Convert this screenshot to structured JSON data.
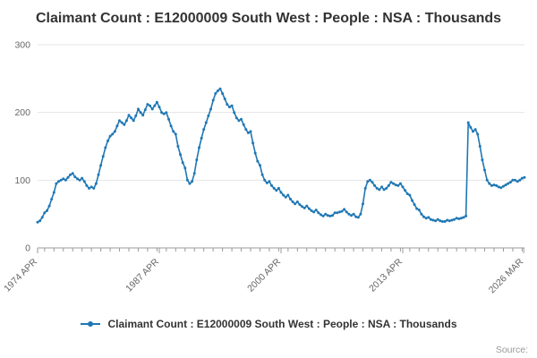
{
  "title": "Claimant Count : E12000009 South West : People : NSA : Thousands",
  "source_label": "Source:",
  "legend": {
    "label": "Claimant Count : E12000009 South West : People : NSA : Thousands"
  },
  "colors": {
    "line": "#1f77b4",
    "grid": "#e4e4e4",
    "axis": "#999999",
    "title_text": "#333333",
    "tick_text": "#666666",
    "source_text": "#999999"
  },
  "chart_data": {
    "type": "line",
    "title": "Claimant Count : E12000009 South West : People : NSA : Thousands",
    "xlabel": "",
    "ylabel": "",
    "legend_position": "bottom",
    "grid": true,
    "ylim": [
      0,
      300
    ],
    "yticks": [
      0,
      100,
      200,
      300
    ],
    "x_range": [
      1974.25,
      2026.25
    ],
    "xticks": [
      {
        "x": 1974.25,
        "label": "1974 APR"
      },
      {
        "x": 1987.25,
        "label": "1987 APR"
      },
      {
        "x": 2000.25,
        "label": "2000 APR"
      },
      {
        "x": 2013.25,
        "label": "2013 APR"
      },
      {
        "x": 2026.17,
        "label": "2026 MAR"
      }
    ],
    "minor_tick_years": [
      1975,
      2026,
      1
    ],
    "x_start": 1974.25,
    "x_step": 0.25,
    "values": [
      38,
      40,
      45,
      52,
      55,
      62,
      72,
      82,
      95,
      98,
      100,
      102,
      100,
      104,
      108,
      110,
      105,
      102,
      100,
      103,
      98,
      92,
      88,
      90,
      88,
      95,
      108,
      122,
      135,
      148,
      158,
      165,
      168,
      172,
      180,
      188,
      185,
      182,
      188,
      196,
      192,
      188,
      195,
      205,
      200,
      196,
      204,
      212,
      210,
      205,
      210,
      215,
      208,
      200,
      198,
      200,
      190,
      180,
      172,
      168,
      150,
      138,
      126,
      118,
      100,
      95,
      98,
      110,
      130,
      148,
      162,
      175,
      185,
      195,
      205,
      218,
      228,
      232,
      235,
      228,
      220,
      212,
      208,
      210,
      200,
      192,
      188,
      190,
      182,
      175,
      170,
      172,
      155,
      140,
      128,
      122,
      108,
      100,
      96,
      98,
      92,
      88,
      85,
      88,
      82,
      78,
      75,
      78,
      72,
      68,
      65,
      68,
      64,
      61,
      59,
      62,
      58,
      55,
      53,
      56,
      52,
      49,
      47,
      50,
      48,
      47,
      48,
      52,
      52,
      53,
      54,
      57,
      53,
      50,
      48,
      50,
      46,
      45,
      50,
      65,
      88,
      98,
      100,
      97,
      92,
      88,
      86,
      90,
      86,
      88,
      92,
      97,
      95,
      93,
      92,
      95,
      90,
      85,
      80,
      78,
      70,
      64,
      58,
      56,
      50,
      46,
      44,
      45,
      42,
      41,
      40,
      42,
      40,
      39,
      39,
      41,
      40,
      41,
      42,
      44,
      43,
      44,
      45,
      47,
      185,
      178,
      172,
      175,
      168,
      150,
      130,
      115,
      100,
      95,
      92,
      93,
      92,
      90,
      89,
      91,
      93,
      95,
      97,
      100,
      100,
      98,
      100,
      103,
      104
    ]
  }
}
